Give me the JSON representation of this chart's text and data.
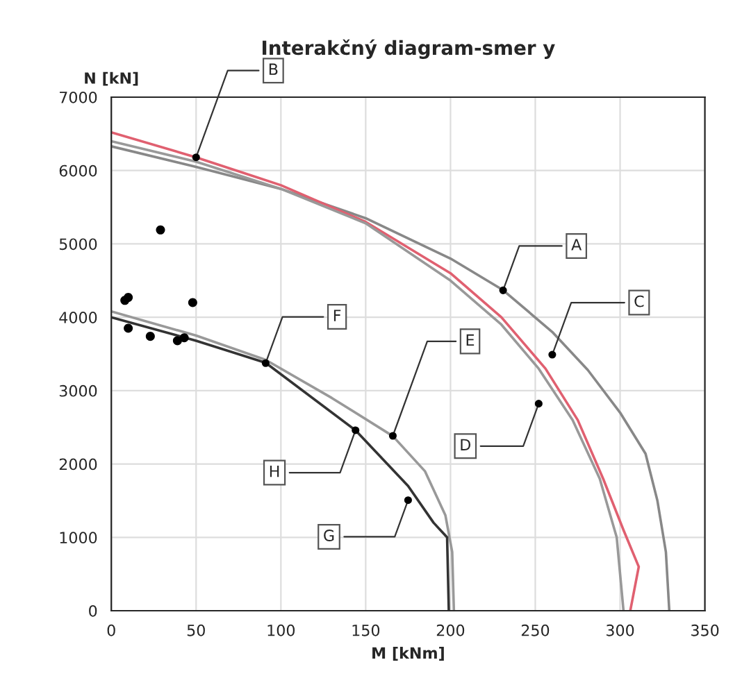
{
  "chart_data": {
    "type": "line",
    "title": "Interakčný diagram-smer y",
    "xlabel": "M [kNm]",
    "ylabel": "N [kN]",
    "xlim": [
      0,
      350
    ],
    "xticks": [
      0,
      50,
      100,
      150,
      200,
      250,
      300,
      350
    ],
    "ylim": [
      0,
      7000
    ],
    "yticks": [
      0,
      1000,
      2000,
      3000,
      4000,
      5000,
      6000,
      7000
    ],
    "grid": true,
    "legend": false,
    "series": [
      {
        "color": "#888888",
        "x": [
          0,
          50,
          100,
          150,
          200,
          231,
          260,
          281,
          300,
          315,
          322,
          327,
          329
        ],
        "values": [
          6330,
          6050,
          5750,
          5350,
          4800,
          4370,
          3800,
          3280,
          2700,
          2140,
          1500,
          800,
          0
        ]
      },
      {
        "color": "#e06070",
        "x": [
          0,
          50,
          100,
          150,
          200,
          230,
          256,
          275,
          290,
          302,
          311,
          306
        ],
        "values": [
          6520,
          6180,
          5800,
          5300,
          4600,
          4000,
          3300,
          2600,
          1800,
          1100,
          600,
          0
        ]
      },
      {
        "color": "#999999",
        "x": [
          0,
          50,
          100,
          150,
          200,
          230,
          252,
          272,
          288,
          298,
          302
        ],
        "values": [
          6400,
          6120,
          5750,
          5280,
          4500,
          3900,
          3300,
          2600,
          1800,
          1000,
          0
        ]
      },
      {
        "color": "#999999",
        "x": [
          0,
          50,
          91,
          130,
          166,
          185,
          197,
          201,
          202
        ],
        "values": [
          4080,
          3750,
          3420,
          2900,
          2380,
          1900,
          1300,
          800,
          0
        ]
      },
      {
        "color": "#333333",
        "x": [
          0,
          50,
          91,
          144,
          175,
          190,
          198,
          199
        ],
        "values": [
          4000,
          3680,
          3380,
          2460,
          1700,
          1200,
          1000,
          0
        ]
      },
      {
        "type": "scatter",
        "color": "#000000",
        "x": [
          8,
          10,
          10,
          23,
          39,
          43,
          48,
          29
        ],
        "values": [
          4230,
          4270,
          3850,
          3740,
          3680,
          3720,
          4200,
          5190
        ]
      }
    ],
    "annotations": [
      {
        "text": "B",
        "x": 50,
        "y": 6180
      },
      {
        "text": "A",
        "x": 231,
        "y": 4367
      },
      {
        "text": "C",
        "x": 260,
        "y": 3490
      },
      {
        "text": "D",
        "x": 252,
        "y": 2822
      },
      {
        "text": "F",
        "x": 91,
        "y": 3375
      },
      {
        "text": "E",
        "x": 166,
        "y": 2384
      },
      {
        "text": "H",
        "x": 144,
        "y": 2460
      },
      {
        "text": "G",
        "x": 175,
        "y": 1507
      }
    ]
  }
}
